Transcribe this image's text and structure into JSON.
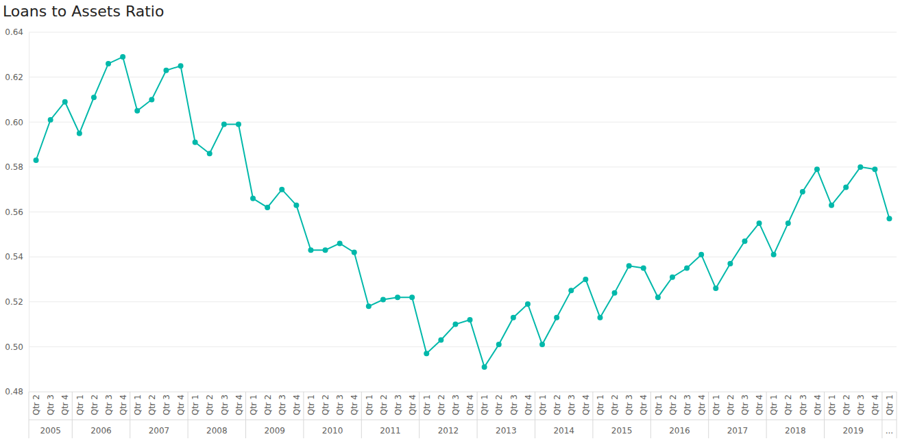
{
  "chart_data": {
    "type": "line",
    "title": "Loans to Assets Ratio",
    "categories": [
      "Qtr 2",
      "Qtr 3",
      "Qtr 4",
      "Qtr 1",
      "Qtr 2",
      "Qtr 3",
      "Qtr 4",
      "Qtr 1",
      "Qtr 2",
      "Qtr 3",
      "Qtr 4",
      "Qtr 1",
      "Qtr 2",
      "Qtr 3",
      "Qtr 4",
      "Qtr 1",
      "Qtr 2",
      "Qtr 3",
      "Qtr 4",
      "Qtr 1",
      "Qtr 2",
      "Qtr 3",
      "Qtr 4",
      "Qtr 1",
      "Qtr 2",
      "Qtr 3",
      "Qtr 4",
      "Qtr 1",
      "Qtr 2",
      "Qtr 3",
      "Qtr 4",
      "Qtr 1",
      "Qtr 2",
      "Qtr 3",
      "Qtr 4",
      "Qtr 1",
      "Qtr 2",
      "Qtr 3",
      "Qtr 4",
      "Qtr 1",
      "Qtr 2",
      "Qtr 3",
      "Qtr 4",
      "Qtr 1",
      "Qtr 2",
      "Qtr 3",
      "Qtr 4",
      "Qtr 1",
      "Qtr 2",
      "Qtr 3",
      "Qtr 4",
      "Qtr 1",
      "Qtr 2",
      "Qtr 3",
      "Qtr 4",
      "Qtr 1",
      "Qtr 2",
      "Qtr 3",
      "Qtr 4",
      "Qtr 1"
    ],
    "category_years": [
      "2005",
      "2005",
      "2005",
      "2006",
      "2006",
      "2006",
      "2006",
      "2007",
      "2007",
      "2007",
      "2007",
      "2008",
      "2008",
      "2008",
      "2008",
      "2009",
      "2009",
      "2009",
      "2009",
      "2010",
      "2010",
      "2010",
      "2010",
      "2011",
      "2011",
      "2011",
      "2011",
      "2012",
      "2012",
      "2012",
      "2012",
      "2013",
      "2013",
      "2013",
      "2013",
      "2014",
      "2014",
      "2014",
      "2014",
      "2015",
      "2015",
      "2015",
      "2015",
      "2016",
      "2016",
      "2016",
      "2016",
      "2017",
      "2017",
      "2017",
      "2017",
      "2018",
      "2018",
      "2018",
      "2018",
      "2019",
      "2019",
      "2019",
      "2019",
      "..."
    ],
    "values": [
      0.583,
      0.601,
      0.609,
      0.595,
      0.611,
      0.626,
      0.629,
      0.605,
      0.61,
      0.623,
      0.625,
      0.591,
      0.586,
      0.599,
      0.599,
      0.566,
      0.562,
      0.57,
      0.563,
      0.543,
      0.543,
      0.546,
      0.542,
      0.518,
      0.521,
      0.522,
      0.522,
      0.497,
      0.503,
      0.51,
      0.512,
      0.491,
      0.501,
      0.513,
      0.519,
      0.501,
      0.513,
      0.525,
      0.53,
      0.513,
      0.524,
      0.536,
      0.535,
      0.522,
      0.531,
      0.535,
      0.541,
      0.526,
      0.537,
      0.547,
      0.555,
      0.541,
      0.555,
      0.569,
      0.579,
      0.563,
      0.571,
      0.58,
      0.579,
      0.557
    ],
    "color": "#01b8aa",
    "marker": "circle",
    "ylim": [
      0.48,
      0.64
    ],
    "yticks": [
      0.48,
      {
        "value": 0.5,
        "label": "0.50"
      },
      0.52,
      0.54,
      0.56,
      0.58,
      {
        "value": 0.6,
        "label": "0.60"
      },
      0.62,
      0.64
    ],
    "grid": true
  }
}
